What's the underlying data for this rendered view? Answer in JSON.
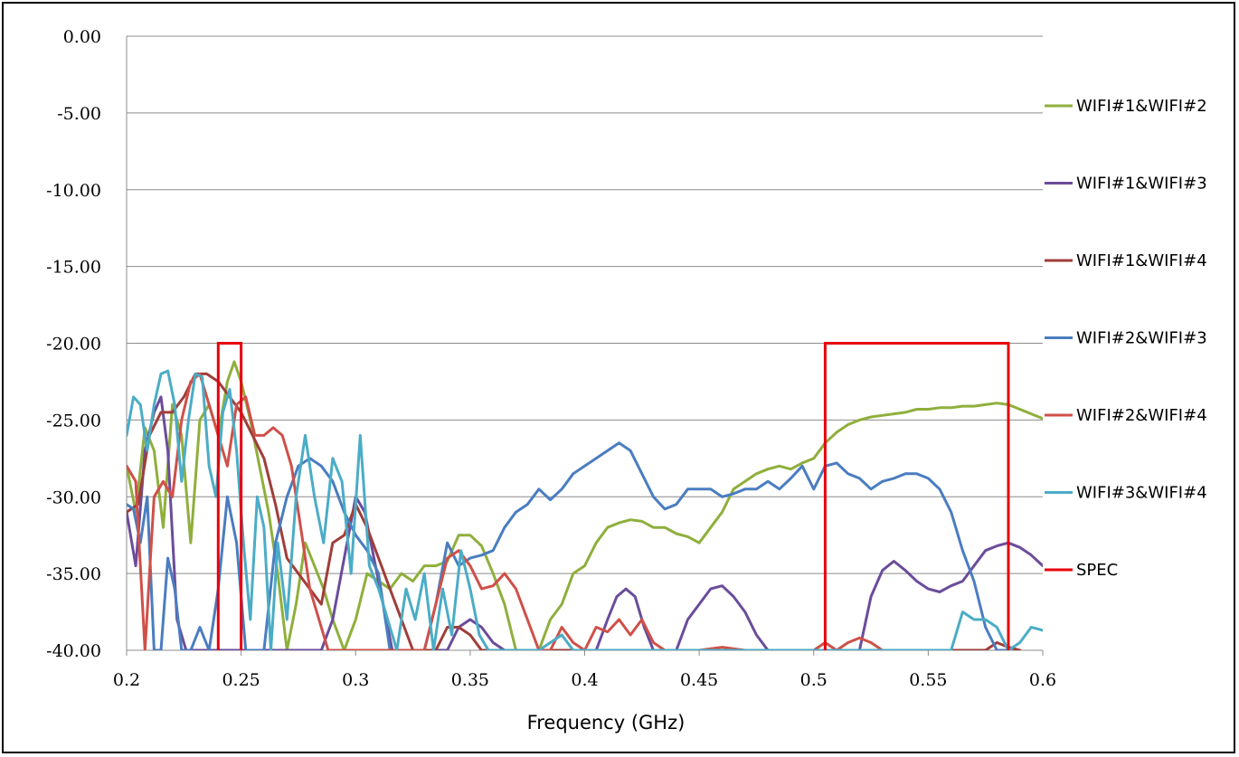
{
  "chart_data": {
    "type": "line",
    "title": "",
    "xlabel": "Frequency (GHz)",
    "ylabel": "",
    "xlim": [
      0.2,
      0.6
    ],
    "ylim": [
      -40,
      0
    ],
    "x_ticks": [
      "0.2",
      "0.25",
      "0.3",
      "0.35",
      "0.4",
      "0.45",
      "0.5",
      "0.55",
      "0.6"
    ],
    "y_ticks": [
      "0.00",
      "-5.00",
      "-10.00",
      "-15.00",
      "-20.00",
      "-25.00",
      "-30.00",
      "-35.00",
      "-40.00"
    ],
    "grid": "horizontal",
    "legend_position": "right",
    "series": [
      {
        "name": "WIFI#1&WIFI#2",
        "color": "#8FAF3C",
        "x": [
          0.2,
          0.204,
          0.208,
          0.212,
          0.216,
          0.22,
          0.224,
          0.228,
          0.232,
          0.236,
          0.24,
          0.244,
          0.247,
          0.25,
          0.254,
          0.258,
          0.262,
          0.266,
          0.27,
          0.274,
          0.278,
          0.282,
          0.286,
          0.29,
          0.295,
          0.3,
          0.305,
          0.31,
          0.315,
          0.32,
          0.325,
          0.33,
          0.335,
          0.34,
          0.345,
          0.35,
          0.355,
          0.36,
          0.365,
          0.37,
          0.375,
          0.38,
          0.385,
          0.39,
          0.395,
          0.4,
          0.405,
          0.41,
          0.415,
          0.42,
          0.425,
          0.43,
          0.435,
          0.44,
          0.445,
          0.45,
          0.455,
          0.46,
          0.465,
          0.47,
          0.475,
          0.48,
          0.485,
          0.49,
          0.495,
          0.5,
          0.505,
          0.51,
          0.515,
          0.52,
          0.525,
          0.53,
          0.535,
          0.54,
          0.545,
          0.55,
          0.555,
          0.56,
          0.565,
          0.57,
          0.575,
          0.58,
          0.585,
          0.59,
          0.595,
          0.6
        ],
        "y": [
          -28.0,
          -31.0,
          -25.5,
          -27.0,
          -32.0,
          -24.0,
          -26.0,
          -33.0,
          -25.0,
          -24.0,
          -26.0,
          -22.5,
          -21.2,
          -22.5,
          -25.0,
          -28.0,
          -31.0,
          -35.0,
          -40.0,
          -37.0,
          -33.0,
          -34.5,
          -36.0,
          -38.0,
          -40.0,
          -38.0,
          -35.0,
          -35.5,
          -36.0,
          -35.0,
          -35.5,
          -34.5,
          -34.5,
          -34.2,
          -32.5,
          -32.5,
          -33.2,
          -35.0,
          -37.0,
          -40.0,
          -40.0,
          -40.0,
          -38.0,
          -37.0,
          -35.0,
          -34.5,
          -33.0,
          -32.0,
          -31.7,
          -31.5,
          -31.6,
          -32.0,
          -32.0,
          -32.4,
          -32.6,
          -33.0,
          -32.0,
          -31.0,
          -29.5,
          -29.0,
          -28.5,
          -28.2,
          -28.0,
          -28.2,
          -27.8,
          -27.5,
          -26.5,
          -25.8,
          -25.3,
          -25.0,
          -24.8,
          -24.7,
          -24.6,
          -24.5,
          -24.3,
          -24.3,
          -24.2,
          -24.2,
          -24.1,
          -24.1,
          -24.0,
          -23.9,
          -24.0,
          -24.3,
          -24.6,
          -24.9
        ]
      },
      {
        "name": "WIFI#1&WIFI#3",
        "color": "#6B4C9A",
        "x": [
          0.2,
          0.204,
          0.208,
          0.212,
          0.215,
          0.218,
          0.222,
          0.226,
          0.23,
          0.235,
          0.24,
          0.245,
          0.25,
          0.255,
          0.26,
          0.265,
          0.27,
          0.275,
          0.28,
          0.285,
          0.29,
          0.295,
          0.3,
          0.304,
          0.308,
          0.312,
          0.316,
          0.32,
          0.33,
          0.34,
          0.345,
          0.35,
          0.355,
          0.36,
          0.365,
          0.37,
          0.405,
          0.41,
          0.414,
          0.418,
          0.422,
          0.426,
          0.43,
          0.435,
          0.44,
          0.445,
          0.45,
          0.455,
          0.46,
          0.465,
          0.47,
          0.475,
          0.48,
          0.485,
          0.52,
          0.525,
          0.53,
          0.535,
          0.54,
          0.545,
          0.55,
          0.555,
          0.56,
          0.565,
          0.57,
          0.575,
          0.58,
          0.585,
          0.59,
          0.595,
          0.6
        ],
        "y": [
          -31.0,
          -34.5,
          -27.0,
          -24.5,
          -23.5,
          -27.0,
          -38.0,
          -40.0,
          -40.0,
          -40.0,
          -40.0,
          -40.0,
          -40.0,
          -40.0,
          -40.0,
          -40.0,
          -40.0,
          -40.0,
          -40.0,
          -40.0,
          -38.0,
          -34.0,
          -30.0,
          -31.0,
          -34.0,
          -37.0,
          -40.0,
          -40.0,
          -40.0,
          -40.0,
          -38.5,
          -38.0,
          -38.5,
          -39.5,
          -40.0,
          -40.0,
          -40.0,
          -38.0,
          -36.5,
          -36.0,
          -36.5,
          -38.5,
          -40.0,
          -40.0,
          -40.0,
          -38.0,
          -37.0,
          -36.0,
          -35.8,
          -36.5,
          -37.5,
          -39.0,
          -40.0,
          -40.0,
          -40.0,
          -36.5,
          -34.8,
          -34.2,
          -34.8,
          -35.5,
          -36.0,
          -36.2,
          -35.8,
          -35.5,
          -34.5,
          -33.5,
          -33.2,
          -33.0,
          -33.3,
          -33.8,
          -34.5
        ]
      },
      {
        "name": "WIFI#1&WIFI#4",
        "color": "#A03E3A",
        "x": [
          0.2,
          0.205,
          0.21,
          0.215,
          0.22,
          0.225,
          0.23,
          0.235,
          0.24,
          0.245,
          0.25,
          0.255,
          0.26,
          0.265,
          0.27,
          0.275,
          0.28,
          0.285,
          0.29,
          0.295,
          0.3,
          0.305,
          0.31,
          0.315,
          0.32,
          0.325,
          0.33,
          0.335,
          0.34,
          0.345,
          0.35,
          0.355,
          0.36,
          0.365,
          0.37,
          0.375,
          0.575,
          0.58,
          0.585,
          0.59
        ],
        "y": [
          -31.0,
          -30.5,
          -26.0,
          -24.5,
          -24.5,
          -23.5,
          -22.0,
          -22.0,
          -22.5,
          -23.5,
          -24.5,
          -26.0,
          -27.5,
          -30.5,
          -34.0,
          -35.0,
          -36.0,
          -37.0,
          -33.0,
          -32.5,
          -30.5,
          -32.0,
          -34.0,
          -36.0,
          -38.0,
          -40.0,
          -40.0,
          -40.0,
          -38.5,
          -38.5,
          -39.0,
          -40.0,
          -40.0,
          -40.0,
          -40.0,
          -40.0,
          -40.0,
          -39.5,
          -39.8,
          -40.0
        ]
      },
      {
        "name": "WIFI#2&WIFI#3",
        "color": "#4A7DC0",
        "x": [
          0.2,
          0.203,
          0.206,
          0.209,
          0.212,
          0.215,
          0.218,
          0.221,
          0.224,
          0.228,
          0.232,
          0.236,
          0.24,
          0.244,
          0.248,
          0.252,
          0.256,
          0.26,
          0.265,
          0.27,
          0.275,
          0.28,
          0.285,
          0.29,
          0.295,
          0.3,
          0.305,
          0.31,
          0.315,
          0.32,
          0.325,
          0.33,
          0.335,
          0.34,
          0.345,
          0.35,
          0.355,
          0.36,
          0.365,
          0.37,
          0.375,
          0.38,
          0.385,
          0.39,
          0.395,
          0.4,
          0.405,
          0.41,
          0.415,
          0.42,
          0.425,
          0.43,
          0.435,
          0.44,
          0.445,
          0.45,
          0.455,
          0.46,
          0.465,
          0.47,
          0.475,
          0.48,
          0.485,
          0.49,
          0.495,
          0.5,
          0.505,
          0.51,
          0.515,
          0.52,
          0.525,
          0.53,
          0.535,
          0.54,
          0.545,
          0.55,
          0.555,
          0.56,
          0.565,
          0.57,
          0.575,
          0.58,
          0.585
        ],
        "y": [
          -30.5,
          -30.8,
          -33.0,
          -30.0,
          -40.0,
          -40.0,
          -34.0,
          -36.0,
          -40.0,
          -40.0,
          -38.5,
          -40.0,
          -36.0,
          -30.0,
          -33.0,
          -40.0,
          -40.0,
          -40.0,
          -33.0,
          -30.0,
          -28.0,
          -27.5,
          -28.0,
          -29.0,
          -31.0,
          -32.5,
          -33.5,
          -35.0,
          -40.0,
          -40.0,
          -40.0,
          -40.0,
          -37.0,
          -33.0,
          -34.5,
          -34.0,
          -33.8,
          -33.5,
          -32.0,
          -31.0,
          -30.5,
          -29.5,
          -30.2,
          -29.5,
          -28.5,
          -28.0,
          -27.5,
          -27.0,
          -26.5,
          -27.0,
          -28.5,
          -30.0,
          -30.8,
          -30.5,
          -29.5,
          -29.5,
          -29.5,
          -30.0,
          -29.8,
          -29.5,
          -29.5,
          -29.0,
          -29.5,
          -28.8,
          -28.0,
          -29.5,
          -28.0,
          -27.8,
          -28.5,
          -28.8,
          -29.5,
          -29.0,
          -28.8,
          -28.5,
          -28.5,
          -28.8,
          -29.5,
          -31.0,
          -33.5,
          -35.5,
          -38.5,
          -40.0,
          -40.0
        ]
      },
      {
        "name": "WIFI#2&WIFI#4",
        "color": "#CF5049",
        "x": [
          0.2,
          0.204,
          0.208,
          0.212,
          0.216,
          0.22,
          0.224,
          0.228,
          0.232,
          0.236,
          0.24,
          0.244,
          0.248,
          0.252,
          0.256,
          0.26,
          0.264,
          0.268,
          0.272,
          0.276,
          0.28,
          0.284,
          0.288,
          0.292,
          0.296,
          0.3,
          0.33,
          0.335,
          0.34,
          0.345,
          0.35,
          0.355,
          0.36,
          0.365,
          0.37,
          0.375,
          0.38,
          0.385,
          0.39,
          0.395,
          0.4,
          0.405,
          0.41,
          0.415,
          0.42,
          0.425,
          0.43,
          0.435,
          0.44,
          0.45,
          0.46,
          0.47,
          0.48,
          0.485,
          0.49,
          0.5,
          0.505,
          0.51,
          0.515,
          0.52,
          0.525,
          0.53,
          0.535
        ],
        "y": [
          -28.0,
          -29.0,
          -40.0,
          -30.0,
          -29.0,
          -30.0,
          -25.0,
          -22.5,
          -22.0,
          -24.0,
          -26.0,
          -28.0,
          -24.0,
          -23.5,
          -26.0,
          -26.0,
          -25.5,
          -26.0,
          -28.0,
          -32.0,
          -36.0,
          -38.0,
          -40.0,
          -40.0,
          -40.0,
          -40.0,
          -40.0,
          -37.0,
          -34.0,
          -33.5,
          -34.5,
          -36.0,
          -35.8,
          -35.0,
          -36.0,
          -38.0,
          -40.0,
          -40.0,
          -38.5,
          -39.5,
          -40.0,
          -38.5,
          -38.8,
          -38.0,
          -39.0,
          -38.0,
          -39.5,
          -40.0,
          -40.0,
          -40.0,
          -39.8,
          -40.0,
          -40.0,
          -40.0,
          -40.0,
          -40.0,
          -39.5,
          -40.0,
          -39.5,
          -39.2,
          -39.5,
          -40.0,
          -40.0
        ]
      },
      {
        "name": "WIFI#3&WIFI#4",
        "color": "#4BACC6",
        "x": [
          0.2,
          0.203,
          0.206,
          0.209,
          0.212,
          0.215,
          0.218,
          0.221,
          0.224,
          0.227,
          0.23,
          0.233,
          0.236,
          0.239,
          0.242,
          0.245,
          0.248,
          0.251,
          0.254,
          0.257,
          0.26,
          0.263,
          0.266,
          0.27,
          0.274,
          0.278,
          0.282,
          0.286,
          0.29,
          0.294,
          0.298,
          0.302,
          0.306,
          0.31,
          0.314,
          0.318,
          0.322,
          0.326,
          0.33,
          0.334,
          0.338,
          0.342,
          0.346,
          0.35,
          0.354,
          0.358,
          0.362,
          0.366,
          0.37,
          0.38,
          0.39,
          0.395,
          0.56,
          0.565,
          0.57,
          0.575,
          0.58,
          0.585,
          0.59,
          0.595,
          0.6
        ],
        "y": [
          -26.0,
          -23.5,
          -24.0,
          -27.0,
          -24.0,
          -22.0,
          -21.8,
          -24.0,
          -29.0,
          -25.0,
          -22.0,
          -22.2,
          -28.0,
          -30.0,
          -24.5,
          -23.0,
          -27.0,
          -33.0,
          -38.0,
          -30.0,
          -32.0,
          -40.0,
          -33.0,
          -38.0,
          -30.0,
          -26.0,
          -30.0,
          -33.0,
          -27.5,
          -29.0,
          -35.0,
          -26.0,
          -34.5,
          -36.0,
          -38.0,
          -40.0,
          -36.0,
          -38.0,
          -35.0,
          -40.0,
          -36.0,
          -39.0,
          -33.5,
          -36.0,
          -39.0,
          -40.0,
          -40.0,
          -40.0,
          -40.0,
          -40.0,
          -39.0,
          -40.0,
          -40.0,
          -37.5,
          -38.0,
          -38.0,
          -38.5,
          -40.0,
          -39.5,
          -38.5,
          -38.7
        ]
      }
    ],
    "spec": {
      "name": "SPEC",
      "color": "#E8000B",
      "boxes": [
        {
          "x0": 0.24,
          "x1": 0.25,
          "y_top": -20,
          "y_bottom": -40
        },
        {
          "x0": 0.505,
          "x1": 0.585,
          "y_top": -20,
          "y_bottom": -40
        }
      ]
    }
  }
}
